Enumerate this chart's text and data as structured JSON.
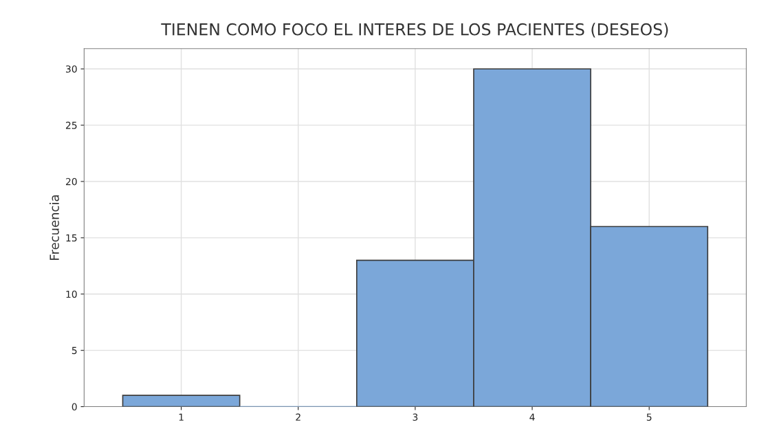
{
  "chart_data": {
    "type": "histogram",
    "title": "TIENEN COMO FOCO EL INTERES DE LOS PACIENTES (DESEOS)",
    "ylabel": "Frecuencia",
    "bins": [
      0.5,
      1.5,
      2.5,
      3.5,
      4.5,
      5.5
    ],
    "values": [
      1,
      0,
      13,
      30,
      16
    ],
    "color": "#7ba7d9",
    "xlim": [
      0.17,
      5.83
    ],
    "xticks": [
      1,
      2,
      3,
      4,
      5
    ],
    "ylim": [
      0,
      31.8
    ],
    "yticks": [
      0,
      5,
      10,
      15,
      20,
      25,
      30
    ],
    "grid": true
  }
}
